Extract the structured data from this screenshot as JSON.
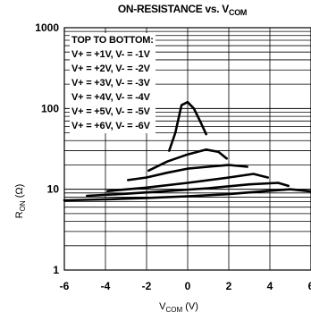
{
  "chart_data": {
    "type": "line",
    "title_main": "ON-RESISTANCE vs. V",
    "title_sub": "COM",
    "xlabel_main": "V",
    "xlabel_sub": "COM",
    "xlabel_unit": " (V)",
    "ylabel_main": "R",
    "ylabel_sub": "ON",
    "ylabel_unit": " (Ω)",
    "xlim": [
      -6,
      6
    ],
    "ylim": [
      1,
      1000
    ],
    "yscale": "log",
    "grid": true,
    "x_ticks": [
      "-6",
      "-4",
      "-2",
      "0",
      "2",
      "4",
      "6"
    ],
    "y_ticks": [
      "1",
      "10",
      "100",
      "1000"
    ],
    "legend_title": "TOP TO BOTTOM:",
    "legend_placement": "top-left",
    "series": [
      {
        "name": "V+ = +1V, V- = -1V",
        "x": [
          -0.9,
          -0.6,
          -0.3,
          0.0,
          0.3,
          0.6,
          0.9
        ],
        "y": [
          30,
          50,
          110,
          120,
          100,
          70,
          48
        ]
      },
      {
        "name": "V+ = +2V, V- = -2V",
        "x": [
          -1.9,
          -1.0,
          0.0,
          0.9,
          1.5,
          1.9
        ],
        "y": [
          17,
          22,
          27,
          31,
          29,
          24
        ]
      },
      {
        "name": "V+ = +3V, V- = -3V",
        "x": [
          -2.9,
          -2.0,
          -1.0,
          0.0,
          1.0,
          2.0,
          2.9
        ],
        "y": [
          13,
          14,
          16,
          18,
          19,
          20,
          19
        ]
      },
      {
        "name": "V+ = +4V, V- = -4V",
        "x": [
          -3.9,
          -2.0,
          0.0,
          2.0,
          3.2,
          3.9
        ],
        "y": [
          9.5,
          10.5,
          12,
          14,
          15.5,
          14
        ]
      },
      {
        "name": "V+ = +5V, V- = -5V",
        "x": [
          -4.9,
          -3.0,
          -1.0,
          1.0,
          3.0,
          4.4,
          4.9
        ],
        "y": [
          8.3,
          8.8,
          9.5,
          10.3,
          11.5,
          12,
          11
        ]
      },
      {
        "name": "V+ = +6V, V- = -6V",
        "x": [
          -6.0,
          -4.0,
          -2.0,
          0.0,
          2.0,
          4.0,
          5.0,
          6.0
        ],
        "y": [
          7.3,
          7.5,
          7.8,
          8.2,
          8.7,
          9.6,
          10,
          9.4
        ]
      }
    ]
  }
}
